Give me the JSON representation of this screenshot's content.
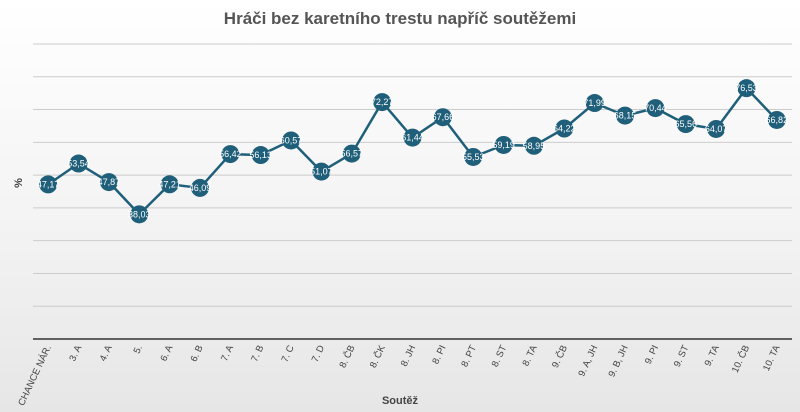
{
  "chart_data": {
    "type": "line",
    "title": "Hráči bez karetního trestu napříč soutěžemi",
    "xlabel": "Soutěž",
    "ylabel": "%",
    "categories": [
      "CHANCE NÁR.",
      "3. A",
      "4. A",
      "5.",
      "6. A",
      "6. B",
      "7. A",
      "7. B",
      "7. C",
      "7. D",
      "8. ČB",
      "8. ČK",
      "8. JH",
      "8. PI",
      "8. PT",
      "8. ST",
      "8. TA",
      "9. ČB",
      "9. A, JH",
      "9. B, JH",
      "9. PI",
      "9. ST",
      "9. TA",
      "10. ČB",
      "10. TA"
    ],
    "value_labels": [
      "47,17",
      "53,54",
      "47,87",
      "38,03",
      "47,21",
      "46,09",
      "56,42",
      "56,13",
      "60,57",
      "51,07",
      "56,57",
      "72,27",
      "61,44",
      "67,66",
      "55,53",
      "59,19",
      "58,95",
      "64,22",
      "71,99",
      "68,15",
      "70,44",
      "65,56",
      "64,07",
      "76,53",
      "66,82"
    ],
    "values": [
      47.17,
      53.54,
      47.87,
      38.03,
      47.21,
      46.09,
      56.42,
      56.13,
      60.57,
      51.07,
      56.57,
      72.27,
      61.44,
      67.66,
      55.53,
      59.19,
      58.95,
      64.22,
      71.99,
      68.15,
      70.44,
      65.56,
      64.07,
      76.53,
      66.82
    ],
    "ylim": [
      0,
      90
    ],
    "grid": true,
    "colors": {
      "line": "#1f5f7a",
      "marker": "#1f5f7a",
      "grid": "#cccccc",
      "label": "#ffffff"
    }
  }
}
